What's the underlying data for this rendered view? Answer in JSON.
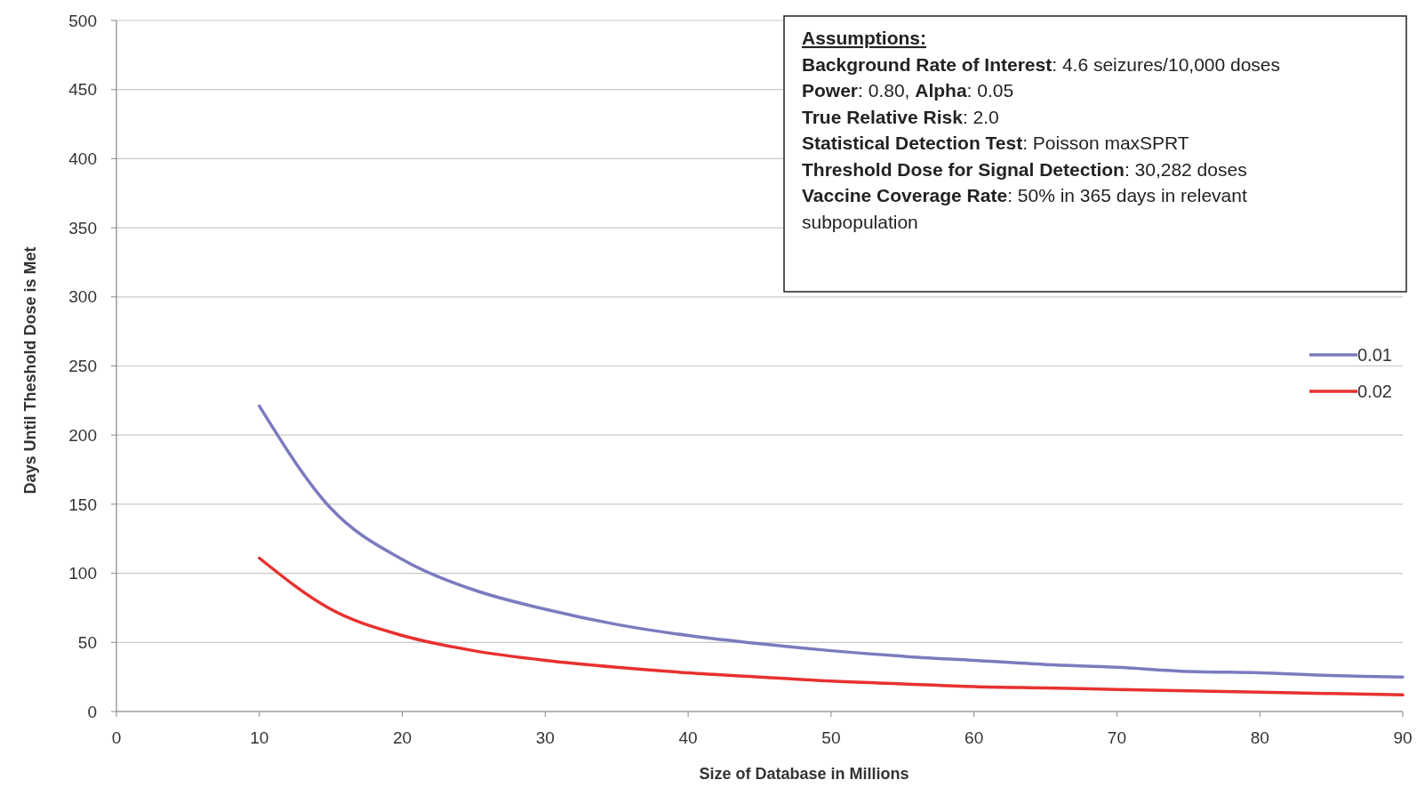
{
  "chart_data": {
    "type": "line",
    "xlabel": "Size of Database in Millions",
    "ylabel": "Days Until Theshold Dose is Met",
    "x": [
      10,
      15,
      20,
      25,
      30,
      35,
      40,
      45,
      50,
      55,
      60,
      65,
      70,
      75,
      80,
      85,
      90
    ],
    "series": [
      {
        "name": "0.01",
        "color": "#7b7bbf",
        "values": [
          221,
          147,
          110,
          88,
          74,
          63,
          55,
          49,
          44,
          40,
          37,
          34,
          32,
          29,
          28,
          26,
          25
        ]
      },
      {
        "name": "0.02",
        "color": "#e8312f",
        "values": [
          111,
          74,
          55,
          44,
          37,
          32,
          28,
          25,
          22,
          20,
          18,
          17,
          16,
          15,
          14,
          13,
          12
        ]
      }
    ],
    "xlim": [
      0,
      90
    ],
    "xticks": [
      0,
      10,
      20,
      30,
      40,
      50,
      60,
      70,
      80,
      90
    ],
    "ylim": [
      0,
      500
    ],
    "yticks": [
      0,
      50,
      100,
      150,
      200,
      250,
      300,
      350,
      400,
      450,
      500
    ],
    "grid": "y",
    "legend": "right",
    "marker": "none",
    "line_style": "solid",
    "annotations": [
      "Assumptions:",
      "Background Rate of Interest: 4.6 seizures/10,000 doses",
      "Power: 0.80, Alpha: 0.05",
      "True Relative Risk: 2.0",
      "Statistical Detection Test: Poisson maxSPRT",
      "Threshold Dose for Signal Detection: 30,282 doses",
      "Vaccine Coverage Rate: 50% in 365 days in relevant subpopulation"
    ]
  }
}
